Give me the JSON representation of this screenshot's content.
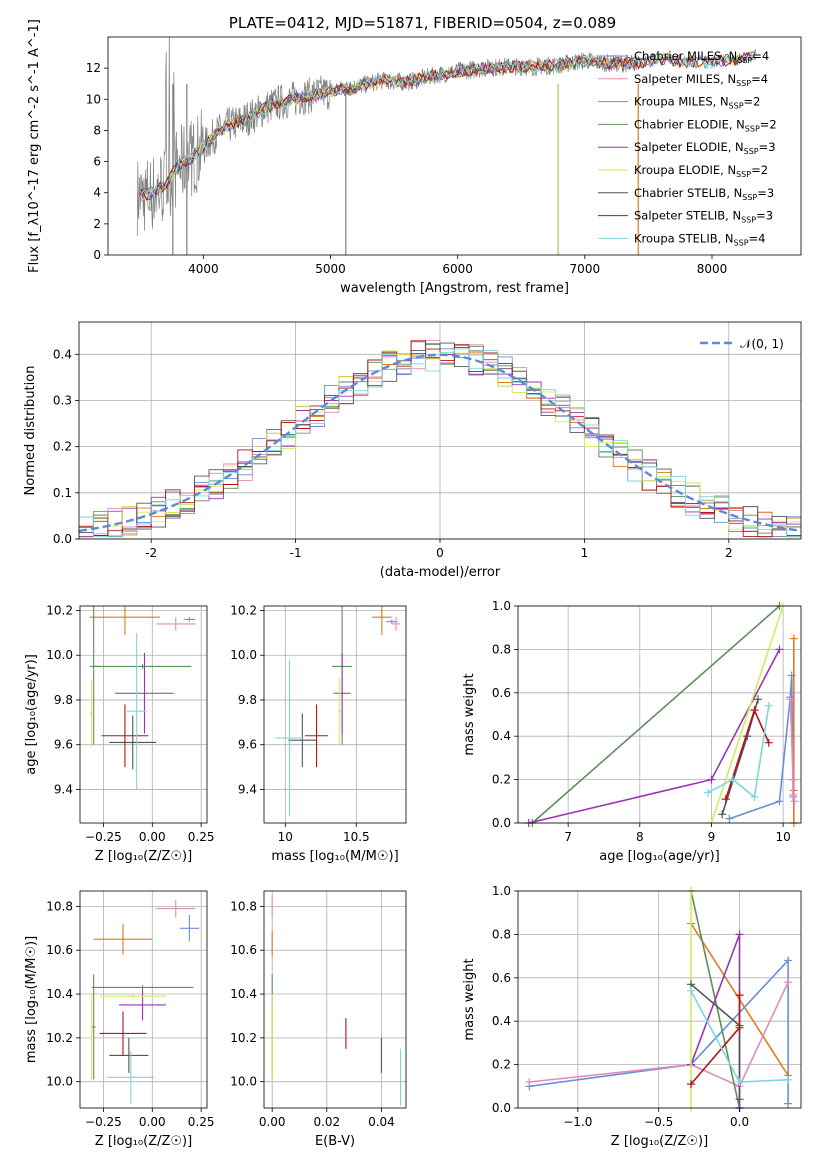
{
  "colors": {
    "Chabrier MILES": "#6b8fd6",
    "Salpeter MILES": "#e58ac0",
    "Kroupa MILES": "#e07b1a",
    "Chabrier ELODIE": "#5e8e5e",
    "Salpeter ELODIE": "#9a35b0",
    "Kroupa ELODIE": "#d6ea5a",
    "Chabrier STELIB": "#555555",
    "Salpeter STELIB": "#b31515",
    "Kroupa STELIB": "#7dd6dc",
    "gaussian": "#5b8bd8"
  },
  "chart_data": [
    {
      "type": "line",
      "title": "PLATE=0412, MJD=51871, FIBERID=0504, z=0.089",
      "xlabel": "wavelength [Angstrom, rest frame]",
      "ylabel": "Flux [f_λ10^-17 erg cm^-2 s^-1 A^-1]",
      "xlim": [
        3250,
        8700
      ],
      "ylim": [
        0,
        14
      ],
      "xticks": [
        4000,
        5000,
        6000,
        7000,
        8000
      ],
      "yticks": [
        0,
        2,
        4,
        6,
        8,
        10,
        12
      ],
      "legend_position": "top-right",
      "legend": [
        {
          "model": "Chabrier MILES",
          "nssp": "4"
        },
        {
          "model": "Salpeter MILES",
          "nssp": "4"
        },
        {
          "model": "Kroupa MILES",
          "nssp": "2"
        },
        {
          "model": "Chabrier ELODIE",
          "nssp": "2"
        },
        {
          "model": "Salpeter ELODIE",
          "nssp": "3"
        },
        {
          "model": "Kroupa ELODIE",
          "nssp": "2"
        },
        {
          "model": "Chabrier STELIB",
          "nssp": "3"
        },
        {
          "model": "Salpeter STELIB",
          "nssp": "3"
        },
        {
          "model": "Kroupa STELIB",
          "nssp": "4"
        }
      ],
      "continuum": {
        "x": [
          3500,
          3600,
          3700,
          3800,
          3900,
          4000,
          4100,
          4200,
          4300,
          4400,
          4500,
          4600,
          4800,
          5000,
          5200,
          5400,
          5600,
          5800,
          6000,
          6200,
          6400,
          6600,
          6800,
          7000,
          7200,
          7400,
          7600,
          7800,
          8000,
          8200,
          8400
        ],
        "y": [
          3.8,
          4.0,
          4.5,
          5.7,
          6.2,
          6.9,
          7.8,
          8.3,
          8.6,
          9.0,
          9.5,
          9.8,
          10.2,
          10.5,
          10.8,
          11.2,
          11.1,
          11.5,
          11.8,
          12.0,
          12.1,
          12.1,
          12.2,
          12.5,
          12.3,
          12.3,
          12.6,
          12.4,
          12.4,
          12.6,
          12.9
        ]
      }
    },
    {
      "type": "bar",
      "xlabel": "(data-model)/error",
      "ylabel": "Normed distribution",
      "xlim": [
        -2.5,
        2.5
      ],
      "ylim": [
        0,
        0.47
      ],
      "xticks": [
        -2,
        -1,
        0,
        1,
        2
      ],
      "yticks": [
        0.0,
        0.1,
        0.2,
        0.3,
        0.4
      ],
      "legend": [
        "𝒩(0, 1)"
      ],
      "legend_position": "top-right",
      "bin_width": 0.1
    },
    {
      "type": "scatter",
      "xlabel": "Z [log₁₀(Z/Z☉)]",
      "ylabel": "age  [log₁₀(age/yr)]",
      "xlim": [
        -0.37,
        0.28
      ],
      "ylim": [
        9.25,
        10.22
      ],
      "xticks": [
        -0.25,
        0.0,
        0.25
      ],
      "xtick_labels": [
        "−0.25",
        "0.00",
        "0.25"
      ],
      "yticks": [
        9.4,
        9.6,
        9.8,
        10.0,
        10.2
      ],
      "points": [
        {
          "model": "Chabrier MILES",
          "x": 0.19,
          "xerr": 0.03,
          "y": 10.16,
          "yerr": 0.01
        },
        {
          "model": "Salpeter MILES",
          "x": 0.12,
          "xerr": 0.1,
          "y": 10.14,
          "yerr": 0.03
        },
        {
          "model": "Kroupa MILES",
          "x": -0.14,
          "xerr": 0.18,
          "y": 10.17,
          "yerr": 0.08
        },
        {
          "model": "Chabrier ELODIE",
          "x": -0.3,
          "xerr": 0.02,
          "y": 9.95,
          "yerr": 0.35
        },
        {
          "model": "Chabrier ELODIE",
          "x": -0.05,
          "xerr": 0.25,
          "y": 9.95,
          "yerr": 0.01
        },
        {
          "model": "Salpeter ELODIE",
          "x": -0.04,
          "xerr": 0.15,
          "y": 9.83,
          "yerr": 0.18
        },
        {
          "model": "Kroupa ELODIE",
          "x": -0.31,
          "xerr": 0.01,
          "y": 9.74,
          "yerr": 0.15
        },
        {
          "model": "Chabrier STELIB",
          "x": -0.1,
          "xerr": 0.12,
          "y": 9.61,
          "yerr": 0.12
        },
        {
          "model": "Salpeter STELIB",
          "x": -0.14,
          "xerr": 0.12,
          "y": 9.64,
          "yerr": 0.14
        },
        {
          "model": "Kroupa STELIB",
          "x": -0.08,
          "xerr": 0.05,
          "y": 9.75,
          "yerr": 0.35
        }
      ]
    },
    {
      "type": "scatter",
      "xlabel": "mass [log₁₀(M/M☉)]",
      "xlim": [
        9.85,
        10.85
      ],
      "ylim": [
        9.25,
        10.22
      ],
      "xticks": [
        10.0,
        10.5
      ],
      "yticks": [
        9.4,
        9.6,
        9.8,
        10.0,
        10.2
      ],
      "points": [
        {
          "model": "Chabrier MILES",
          "x": 10.75,
          "xerr": 0.04,
          "y": 10.15,
          "yerr": 0.01
        },
        {
          "model": "Salpeter MILES",
          "x": 10.78,
          "xerr": 0.03,
          "y": 10.14,
          "yerr": 0.03
        },
        {
          "model": "Kroupa MILES",
          "x": 10.68,
          "xerr": 0.07,
          "y": 10.17,
          "yerr": 0.08
        },
        {
          "model": "Chabrier ELODIE",
          "x": 10.4,
          "xerr": 0.07,
          "y": 9.95,
          "yerr": 0.35
        },
        {
          "model": "Salpeter ELODIE",
          "x": 10.4,
          "xerr": 0.06,
          "y": 9.83,
          "yerr": 0.18
        },
        {
          "model": "Kroupa ELODIE",
          "x": 10.38,
          "xerr": 0.01,
          "y": 9.75,
          "yerr": 0.15
        },
        {
          "model": "Chabrier STELIB",
          "x": 10.12,
          "xerr": 0.1,
          "y": 9.62,
          "yerr": 0.12
        },
        {
          "model": "Salpeter STELIB",
          "x": 10.22,
          "xerr": 0.08,
          "y": 9.64,
          "yerr": 0.14
        },
        {
          "model": "Kroupa STELIB",
          "x": 10.03,
          "xerr": 0.1,
          "y": 9.63,
          "yerr": 0.35
        }
      ]
    },
    {
      "type": "line",
      "xlabel": "age  [log₁₀(age/yr)]",
      "ylabel": "mass weight",
      "xlim": [
        6.3,
        10.25
      ],
      "ylim": [
        0,
        1
      ],
      "xticks": [
        7,
        8,
        9,
        10
      ],
      "yticks": [
        0.0,
        0.2,
        0.4,
        0.6,
        0.8,
        1.0
      ],
      "series": [
        {
          "model": "Kroupa MILES",
          "x": [
            10.15,
            10.15,
            10.15
          ],
          "y": [
            0.85,
            0.15,
            0.0
          ]
        },
        {
          "model": "Chabrier MILES",
          "x": [
            9.25,
            9.95,
            10.1,
            10.12,
            10.14
          ],
          "y": [
            0.02,
            0.1,
            0.58,
            0.68,
            0.12
          ]
        },
        {
          "model": "Salpeter MILES",
          "x": [
            10.1,
            10.14,
            10.14,
            10.16
          ],
          "y": [
            0.57,
            0.2,
            0.13,
            0.1
          ]
        },
        {
          "model": "Chabrier ELODIE",
          "x": [
            6.5,
            9.95
          ],
          "y": [
            0.0,
            1.0
          ]
        },
        {
          "model": "Salpeter ELODIE",
          "x": [
            6.45,
            9.0,
            9.95
          ],
          "y": [
            0.0,
            0.2,
            0.8
          ]
        },
        {
          "model": "Kroupa ELODIE",
          "x": [
            9.0,
            10.0
          ],
          "y": [
            0.0,
            1.0
          ]
        },
        {
          "model": "Chabrier STELIB",
          "x": [
            9.15,
            9.5,
            9.65
          ],
          "y": [
            0.04,
            0.4,
            0.57
          ]
        },
        {
          "model": "Salpeter STELIB",
          "x": [
            9.2,
            9.6,
            9.8
          ],
          "y": [
            0.11,
            0.52,
            0.37
          ]
        },
        {
          "model": "Kroupa STELIB",
          "x": [
            8.95,
            9.3,
            9.6,
            9.8
          ],
          "y": [
            0.14,
            0.2,
            0.12,
            0.54
          ]
        }
      ]
    },
    {
      "type": "scatter",
      "xlabel": "Z [log₁₀(Z/Z☉)]",
      "ylabel": "mass [log₁₀(M/M☉)]",
      "xlim": [
        -0.37,
        0.28
      ],
      "ylim": [
        9.88,
        10.87
      ],
      "xticks": [
        -0.25,
        0.0,
        0.25
      ],
      "xtick_labels": [
        "−0.25",
        "0.00",
        "0.25"
      ],
      "yticks": [
        10.0,
        10.2,
        10.4,
        10.6,
        10.8
      ],
      "points": [
        {
          "model": "Chabrier MILES",
          "x": 0.19,
          "xerr": 0.05,
          "y": 10.7,
          "yerr": 0.06
        },
        {
          "model": "Salpeter MILES",
          "x": 0.12,
          "xerr": 0.1,
          "y": 10.79,
          "yerr": 0.04
        },
        {
          "model": "Kroupa MILES",
          "x": -0.15,
          "xerr": 0.15,
          "y": 10.65,
          "yerr": 0.07
        },
        {
          "model": "Chabrier ELODIE",
          "x": -0.05,
          "xerr": 0.26,
          "y": 10.43,
          "yerr": 0.01
        },
        {
          "model": "Chabrier ELODIE",
          "x": -0.3,
          "xerr": 0.01,
          "y": 10.25,
          "yerr": 0.24
        },
        {
          "model": "Salpeter ELODIE",
          "x": -0.05,
          "xerr": 0.12,
          "y": 10.35,
          "yerr": 0.07
        },
        {
          "model": "Kroupa ELODIE",
          "x": -0.1,
          "xerr": 0.17,
          "y": 10.39,
          "yerr": 0.01
        },
        {
          "model": "Kroupa ELODIE",
          "x": -0.31,
          "xerr": 0.01,
          "y": 10.2,
          "yerr": 0.2
        },
        {
          "model": "Chabrier STELIB",
          "x": -0.12,
          "xerr": 0.1,
          "y": 10.12,
          "yerr": 0.08
        },
        {
          "model": "Salpeter STELIB",
          "x": -0.15,
          "xerr": 0.12,
          "y": 10.22,
          "yerr": 0.1
        },
        {
          "model": "Kroupa STELIB",
          "x": -0.11,
          "xerr": 0.12,
          "y": 10.02,
          "yerr": 0.12
        }
      ]
    },
    {
      "type": "scatter",
      "xlabel": "E(B-V)",
      "xlim": [
        -0.003,
        0.049
      ],
      "ylim": [
        9.88,
        10.87
      ],
      "xticks": [
        0.0,
        0.02,
        0.04
      ],
      "xtick_labels": [
        "0.00",
        "0.02",
        "0.04"
      ],
      "yticks": [
        10.0,
        10.2,
        10.4,
        10.6,
        10.8
      ],
      "points": [
        {
          "model": "Salpeter MILES",
          "x": 0.0,
          "y": 10.8,
          "yerr": 0.05
        },
        {
          "model": "Kroupa MILES",
          "x": 0.0,
          "y": 10.63,
          "yerr": 0.06
        },
        {
          "model": "Chabrier ELODIE",
          "x": 0.0,
          "y": 10.25,
          "yerr": 0.24
        },
        {
          "model": "Kroupa ELODIE",
          "x": 0.0,
          "y": 10.2,
          "yerr": 0.2
        },
        {
          "model": "Salpeter STELIB",
          "x": 0.027,
          "y": 10.22,
          "yerr": 0.07
        },
        {
          "model": "Chabrier STELIB",
          "x": 0.04,
          "y": 10.12,
          "yerr": 0.08
        },
        {
          "model": "Kroupa STELIB",
          "x": 0.047,
          "y": 10.02,
          "yerr": 0.13
        }
      ]
    },
    {
      "type": "line",
      "xlabel": "Z [log₁₀(Z/Z☉)]",
      "ylabel": "mass weight",
      "xlim": [
        -1.37,
        0.38
      ],
      "ylim": [
        0,
        1
      ],
      "xticks": [
        -1.0,
        -0.5,
        0.0
      ],
      "xtick_labels": [
        "−1.0",
        "−0.5",
        "0.0"
      ],
      "yticks": [
        0.0,
        0.2,
        0.4,
        0.6,
        0.8,
        1.0
      ],
      "series": [
        {
          "model": "Kroupa MILES",
          "x": [
            -0.3,
            0.3
          ],
          "y": [
            0.85,
            0.15
          ]
        },
        {
          "model": "Chabrier MILES",
          "x": [
            -1.3,
            -0.3,
            0.3,
            0.3
          ],
          "y": [
            0.1,
            0.2,
            0.68,
            0.02
          ]
        },
        {
          "model": "Salpeter MILES",
          "x": [
            -1.3,
            -0.3,
            0.0,
            0.3
          ],
          "y": [
            0.12,
            0.2,
            0.1,
            0.58
          ]
        },
        {
          "model": "Chabrier ELODIE",
          "x": [
            -0.3,
            0.0
          ],
          "y": [
            1.0,
            0.0
          ]
        },
        {
          "model": "Salpeter ELODIE",
          "x": [
            -0.3,
            0.0,
            0.0
          ],
          "y": [
            0.2,
            0.8,
            0.0
          ]
        },
        {
          "model": "Kroupa ELODIE",
          "x": [
            -0.3,
            -0.3
          ],
          "y": [
            1.0,
            0.0
          ]
        },
        {
          "model": "Chabrier STELIB",
          "x": [
            -0.3,
            0.0,
            0.0
          ],
          "y": [
            0.57,
            0.38,
            0.04
          ]
        },
        {
          "model": "Salpeter STELIB",
          "x": [
            -0.3,
            0.0,
            0.0
          ],
          "y": [
            0.11,
            0.37,
            0.52
          ]
        },
        {
          "model": "Kroupa STELIB",
          "x": [
            -0.3,
            0.0,
            0.3
          ],
          "y": [
            0.54,
            0.12,
            0.13
          ]
        }
      ]
    }
  ]
}
